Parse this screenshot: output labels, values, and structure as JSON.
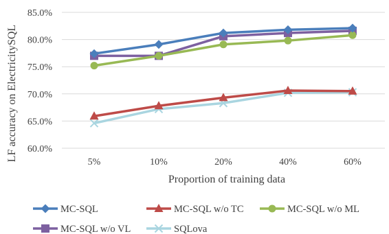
{
  "chart_data": {
    "type": "line",
    "title": "",
    "xlabel": "Proportion of training data",
    "ylabel": "LF accuracy on ElectricitySQL",
    "categories": [
      "5%",
      "10%",
      "20%",
      "40%",
      "60%"
    ],
    "yticks": [
      "60.0%",
      "65.0%",
      "70.0%",
      "75.0%",
      "80.0%",
      "85.0%"
    ],
    "ylim": [
      60,
      85
    ],
    "grid": "horizontal",
    "legend_position": "bottom",
    "series": [
      {
        "name": "MC-SQL",
        "color": "#4a7ebb",
        "marker": "diamond",
        "values": [
          77.4,
          79.1,
          81.2,
          81.8,
          82.1
        ]
      },
      {
        "name": "MC-SQL w/o TC",
        "color": "#be4b48",
        "marker": "triangle",
        "values": [
          65.9,
          67.8,
          69.3,
          70.6,
          70.5
        ]
      },
      {
        "name": "MC-SQL w/o ML",
        "color": "#98b954",
        "marker": "circle",
        "values": [
          75.2,
          77.0,
          79.1,
          79.8,
          80.8
        ]
      },
      {
        "name": "MC-SQL w/o VL",
        "color": "#7d60a0",
        "marker": "square",
        "values": [
          77.0,
          77.0,
          80.6,
          81.2,
          81.6
        ]
      },
      {
        "name": "SQLova",
        "color": "#a9d5e0",
        "marker": "x",
        "values": [
          64.6,
          67.2,
          68.3,
          70.2,
          70.3
        ]
      }
    ]
  }
}
